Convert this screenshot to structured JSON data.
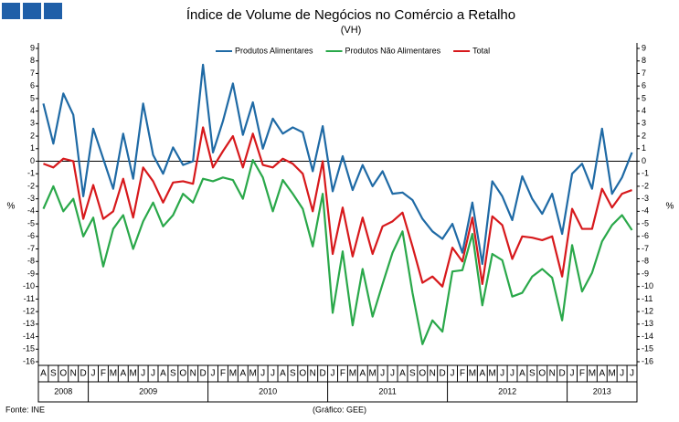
{
  "chart_data": {
    "type": "line",
    "title": "Índice de Volume de Negócios no Comércio a Retalho",
    "subtitle": "(VH)",
    "y_label": "%",
    "source": "Fonte: INE",
    "credit": "(Gráfico: GEE)",
    "categories": [
      "A",
      "S",
      "O",
      "N",
      "D",
      "J",
      "F",
      "M",
      "A",
      "M",
      "J",
      "J",
      "A",
      "S",
      "O",
      "N",
      "D",
      "J",
      "F",
      "M",
      "A",
      "M",
      "J",
      "J",
      "A",
      "S",
      "O",
      "N",
      "D",
      "J",
      "F",
      "M",
      "A",
      "M",
      "J",
      "J",
      "A",
      "S",
      "O",
      "N",
      "D",
      "J",
      "F",
      "M",
      "A",
      "M",
      "J",
      "J",
      "A",
      "S",
      "O",
      "N",
      "D",
      "J",
      "F",
      "M",
      "A",
      "M",
      "J",
      "J"
    ],
    "years": [
      "2008",
      "2009",
      "2010",
      "2011",
      "2012",
      "2013"
    ],
    "series": [
      {
        "name": "Produtos Alimentares",
        "color": "#1f6aa5",
        "values": [
          4.6,
          1.4,
          5.4,
          3.7,
          -2.8,
          2.6,
          0.2,
          -2.2,
          2.2,
          -1.4,
          4.6,
          0.5,
          -1.0,
          1.1,
          -0.3,
          0.0,
          7.7,
          0.7,
          3.2,
          6.2,
          2.1,
          4.7,
          1.0,
          3.4,
          2.2,
          2.7,
          2.3,
          -0.8,
          2.8,
          -2.4,
          0.4,
          -2.3,
          -0.3,
          -2.0,
          -0.8,
          -2.6,
          -2.5,
          -3.1,
          -4.6,
          -5.6,
          -6.2,
          -5.0,
          -7.3,
          -3.3,
          -8.2,
          -1.6,
          -2.8,
          -4.7,
          -1.2,
          -3.0,
          -4.2,
          -2.6,
          -5.8,
          -1.0,
          -0.2,
          -2.2,
          2.6,
          -2.6,
          -1.3,
          0.7
        ]
      },
      {
        "name": "Produtos Não Alimentares",
        "color": "#2aa84a",
        "values": [
          -3.8,
          -2.0,
          -4.0,
          -3.0,
          -6.0,
          -4.5,
          -8.4,
          -5.4,
          -4.3,
          -7.0,
          -4.8,
          -3.3,
          -5.2,
          -4.3,
          -2.6,
          -3.3,
          -1.4,
          -1.6,
          -1.3,
          -1.5,
          -3.0,
          0.1,
          -1.3,
          -4.0,
          -1.5,
          -2.6,
          -3.8,
          -6.8,
          -2.6,
          -12.1,
          -7.2,
          -13.1,
          -8.6,
          -12.4,
          -9.8,
          -7.3,
          -5.6,
          -10.5,
          -14.6,
          -12.7,
          -13.6,
          -8.8,
          -8.7,
          -5.8,
          -11.5,
          -7.4,
          -7.9,
          -10.8,
          -10.5,
          -9.2,
          -8.6,
          -9.3,
          -12.7,
          -6.7,
          -10.4,
          -8.9,
          -6.4,
          -5.1,
          -4.3,
          -5.5
        ]
      },
      {
        "name": "Total",
        "color": "#d7191c",
        "values": [
          -0.2,
          -0.5,
          0.2,
          0.0,
          -4.6,
          -1.9,
          -4.6,
          -4.0,
          -1.4,
          -4.5,
          -0.5,
          -1.6,
          -3.3,
          -1.7,
          -1.6,
          -1.8,
          2.7,
          -0.5,
          0.8,
          2.0,
          -0.5,
          2.2,
          -0.3,
          -0.5,
          0.2,
          -0.2,
          -1.0,
          -4.0,
          0.0,
          -7.4,
          -3.7,
          -7.6,
          -4.5,
          -7.4,
          -5.2,
          -4.8,
          -4.1,
          -6.8,
          -9.7,
          -9.2,
          -10.0,
          -6.9,
          -8.0,
          -4.5,
          -9.8,
          -4.4,
          -5.1,
          -7.8,
          -6.0,
          -6.1,
          -6.3,
          -6.0,
          -9.2,
          -3.8,
          -5.4,
          -5.4,
          -2.2,
          -3.7,
          -2.6,
          -2.3
        ]
      }
    ],
    "ylim": [
      -16,
      9
    ],
    "yticks": [
      9,
      8,
      7,
      6,
      5,
      4,
      3,
      2,
      1,
      0,
      -1,
      -2,
      -3,
      -4,
      -5,
      -6,
      -7,
      -8,
      -9,
      -10,
      -11,
      -12,
      -13,
      -14,
      -15,
      -16
    ],
    "grid": false,
    "legend": "top"
  }
}
